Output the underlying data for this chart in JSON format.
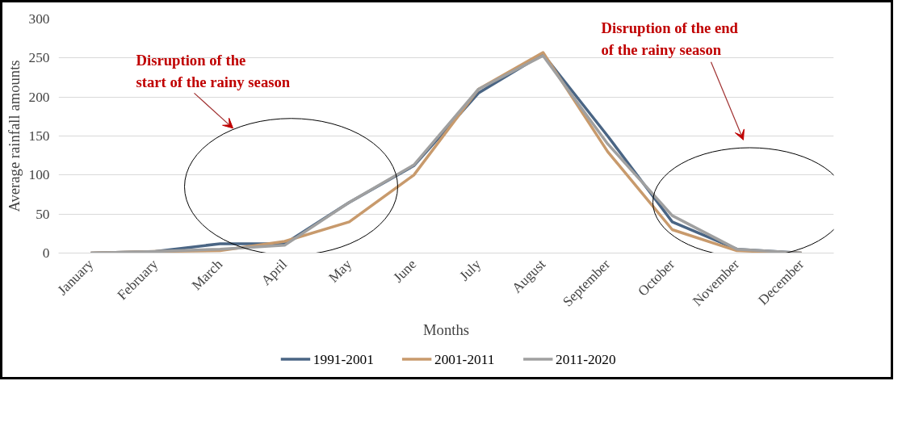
{
  "chart_data": {
    "type": "line",
    "xlabel": "Months",
    "ylabel": "Average rainfall amounts",
    "categories": [
      "January",
      "February",
      "March",
      "April",
      "May",
      "June",
      "July",
      "August",
      "September",
      "October",
      "November",
      "December"
    ],
    "series": [
      {
        "name": "1991-2001",
        "color": "#4a6584",
        "values": [
          0,
          2,
          12,
          12,
          65,
          112,
          205,
          255,
          150,
          40,
          5,
          0
        ]
      },
      {
        "name": "2001-2011",
        "color": "#c89a6c",
        "values": [
          0,
          2,
          3,
          15,
          40,
          100,
          210,
          257,
          130,
          30,
          3,
          0
        ]
      },
      {
        "name": "2011-2020",
        "color": "#a0a0a0",
        "values": [
          0,
          2,
          5,
          10,
          65,
          113,
          210,
          253,
          140,
          48,
          5,
          0
        ]
      }
    ],
    "ylim": [
      0,
      300
    ],
    "yticks": [
      0,
      50,
      100,
      150,
      200,
      250,
      300
    ],
    "grid": "y",
    "legend": "bottom",
    "marker": "none",
    "line_style": "solid",
    "annotations": [
      "Disruption of the start of the rainy season",
      "Disruption of the end of the rainy season"
    ]
  }
}
